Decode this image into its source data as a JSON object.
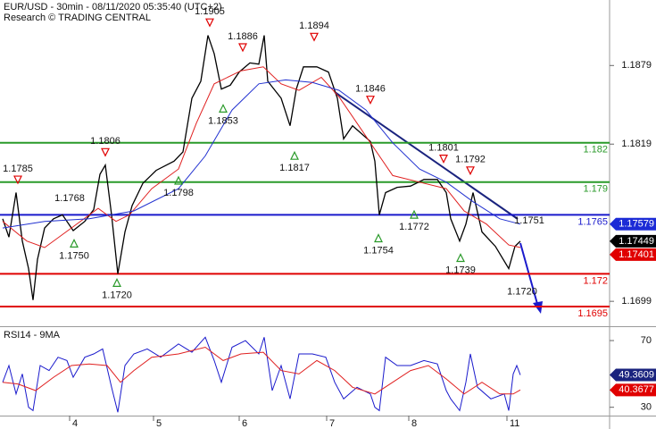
{
  "chart_data": [
    {
      "type": "line",
      "title": "EUR/USD - 30min - 08/11/2020 05:35:40 (UTC+2)",
      "subtitle": "Research © TRADING CENTRAL",
      "xlim": [
        0,
        68.3
      ],
      "ylim": [
        1.168,
        1.1929
      ],
      "yticks": [
        1.1879,
        1.1819,
        1.1699
      ],
      "series": [
        {
          "color": "#000000",
          "x": [
            0.3,
            1,
            1.8,
            2.5,
            3.2,
            3.7,
            4.2,
            5,
            6,
            7,
            8.2,
            9.5,
            10.5,
            11.2,
            11.8,
            12.5,
            13.2,
            14,
            14.8,
            16,
            17.5,
            19.5,
            20.5,
            21.5,
            22.5,
            23.3,
            24,
            24.8,
            25.8,
            26.8,
            28,
            29,
            29.6,
            30,
            31.5,
            32.5,
            33.2,
            34,
            35.5,
            36.8,
            37.8,
            38.5,
            39.5,
            40.5,
            41.5,
            42,
            42.5,
            43.2,
            44.5,
            46,
            47.5,
            49,
            50,
            50.5,
            51.5,
            52.2,
            53,
            54,
            55.5,
            57,
            57.7,
            58.3
          ],
          "values": [
            1.1762,
            1.1748,
            1.1782,
            1.1745,
            1.1724,
            1.17,
            1.1731,
            1.1755,
            1.1762,
            1.1765,
            1.1753,
            1.176,
            1.1769,
            1.1796,
            1.1803,
            1.1765,
            1.172,
            1.1752,
            1.1772,
            1.1789,
            1.1799,
            1.1806,
            1.1813,
            1.1854,
            1.1867,
            1.1902,
            1.1888,
            1.1861,
            1.1864,
            1.1874,
            1.1881,
            1.188,
            1.1902,
            1.1867,
            1.1854,
            1.1833,
            1.1861,
            1.1878,
            1.1878,
            1.1874,
            1.1854,
            1.1823,
            1.1833,
            1.1827,
            1.1821,
            1.1806,
            1.1765,
            1.1782,
            1.1786,
            1.1787,
            1.1792,
            1.1792,
            1.1782,
            1.1762,
            1.1745,
            1.1758,
            1.1782,
            1.1752,
            1.1741,
            1.1724,
            1.1741,
            1.17449
          ]
        },
        {
          "color": "#e02020",
          "x": [
            0.3,
            3,
            5,
            8,
            11,
            13,
            14.5,
            17,
            20,
            22,
            24,
            27,
            29.5,
            31.5,
            33.5,
            36,
            38,
            40,
            42,
            44,
            47,
            50,
            52,
            54.5,
            57,
            58.3
          ],
          "values": [
            1.176,
            1.1745,
            1.174,
            1.1755,
            1.177,
            1.176,
            1.1765,
            1.1785,
            1.18,
            1.1835,
            1.1865,
            1.1875,
            1.1878,
            1.1865,
            1.186,
            1.187,
            1.1855,
            1.1835,
            1.1815,
            1.1795,
            1.179,
            1.1785,
            1.1768,
            1.1758,
            1.1742,
            1.17401
          ]
        },
        {
          "color": "#2030d0",
          "x": [
            0.3,
            5,
            10,
            15,
            20,
            23,
            26,
            29,
            32,
            35,
            38,
            41,
            44,
            47,
            50,
            53,
            56,
            58.3
          ],
          "values": [
            1.1755,
            1.176,
            1.1762,
            1.1768,
            1.1785,
            1.181,
            1.1845,
            1.1865,
            1.1868,
            1.1866,
            1.186,
            1.1845,
            1.182,
            1.18,
            1.179,
            1.1775,
            1.1762,
            1.17579
          ]
        }
      ],
      "levels": [
        {
          "value": 1.182,
          "color": "#2a9a2a"
        },
        {
          "value": 1.179,
          "color": "#2a9a2a"
        },
        {
          "value": 1.1765,
          "color": "#1a1acc"
        },
        {
          "value": 1.172,
          "color": "#e00000"
        },
        {
          "value": 1.1695,
          "color": "#e00000"
        }
      ],
      "badges": [
        {
          "value": 1.17579,
          "color": "#1c2bd6"
        },
        {
          "value": 1.17449,
          "color": "#000000"
        },
        {
          "value": 1.17401,
          "color": "#e00000"
        }
      ],
      "annotations": [
        {
          "label": "1.1785",
          "value": 1.1785,
          "x": 2.0,
          "marker": "down"
        },
        {
          "label": "1.1768",
          "value": 1.1768,
          "x": 7.8,
          "position": "above"
        },
        {
          "label": "1.1750",
          "value": 1.175,
          "x": 8.3,
          "marker": "up"
        },
        {
          "label": "1.1806",
          "value": 1.1806,
          "x": 11.8,
          "marker": "down"
        },
        {
          "label": "1.1720",
          "value": 1.172,
          "x": 13.1,
          "marker": "up"
        },
        {
          "label": "1.1798",
          "value": 1.1798,
          "x": 20.0,
          "marker": "up"
        },
        {
          "label": "1.1905",
          "value": 1.1905,
          "x": 23.5,
          "marker": "down"
        },
        {
          "label": "1.1886",
          "value": 1.1886,
          "x": 27.2,
          "marker": "down"
        },
        {
          "label": "1.1853",
          "value": 1.1853,
          "x": 25.0,
          "marker": "up"
        },
        {
          "label": "1.1894",
          "value": 1.1894,
          "x": 35.2,
          "marker": "down"
        },
        {
          "label": "1.1817",
          "value": 1.1817,
          "x": 33.0,
          "marker": "up"
        },
        {
          "label": "1.1846",
          "value": 1.1846,
          "x": 41.5,
          "marker": "down"
        },
        {
          "label": "1.1801",
          "value": 1.1801,
          "x": 49.7,
          "marker": "down"
        },
        {
          "label": "1.1792",
          "value": 1.1792,
          "x": 52.7,
          "marker": "down"
        },
        {
          "label": "1.1772",
          "value": 1.1772,
          "x": 46.4,
          "marker": "up"
        },
        {
          "label": "1.1754",
          "value": 1.1754,
          "x": 42.4,
          "marker": "up"
        },
        {
          "label": "1.1739",
          "value": 1.1739,
          "x": 51.6,
          "marker": "up"
        },
        {
          "label": "1.1720",
          "value": 1.172,
          "x": 58.5,
          "position": "below"
        },
        {
          "label": "1.1751",
          "value": 1.1751,
          "x": 59.3,
          "position": "above"
        }
      ]
    },
    {
      "type": "line",
      "title": "RSI14 - 9MA",
      "xlim": [
        0,
        68.3
      ],
      "ylim": [
        25,
        77
      ],
      "yticks": [
        70,
        30
      ],
      "xticks": [
        {
          "value": 7.8,
          "label": "4"
        },
        {
          "value": 17.2,
          "label": "5"
        },
        {
          "value": 26.8,
          "label": "6"
        },
        {
          "value": 36.6,
          "label": "7"
        },
        {
          "value": 45.8,
          "label": "8"
        },
        {
          "value": 56.8,
          "label": "11"
        }
      ],
      "series": [
        {
          "color": "#1a1acc",
          "x": [
            0.3,
            1,
            1.8,
            2.5,
            3.2,
            3.7,
            4.5,
            5.5,
            6.5,
            7.5,
            8.2,
            9.5,
            10.5,
            11.5,
            12.5,
            13.2,
            14,
            15,
            16.5,
            18,
            20,
            21.5,
            23,
            24,
            24.8,
            26,
            27.5,
            29,
            29.6,
            30.5,
            31.5,
            32.5,
            33.5,
            35,
            36.5,
            37.5,
            38.5,
            40,
            41.5,
            42,
            42.5,
            43.2,
            44.5,
            46,
            47.5,
            49,
            50,
            50.5,
            51.5,
            52.2,
            52.7,
            53.5,
            55,
            56.5,
            57,
            57.5,
            57.9,
            58.3
          ],
          "values": [
            45,
            55,
            38,
            50,
            30,
            28,
            55,
            52,
            60,
            58,
            48,
            60,
            62,
            65,
            42,
            27,
            55,
            62,
            65,
            60,
            68,
            63,
            72,
            58,
            45,
            66,
            70,
            62,
            72,
            40,
            55,
            35,
            62,
            62,
            60,
            45,
            35,
            42,
            38,
            30,
            28,
            60,
            55,
            55,
            58,
            56,
            40,
            35,
            28,
            45,
            62,
            42,
            35,
            38,
            28,
            50,
            55,
            49.3609
          ]
        },
        {
          "color": "#e02020",
          "x": [
            0.3,
            2,
            4,
            6,
            8,
            10,
            12,
            13.5,
            15,
            17,
            20,
            23,
            25,
            27,
            29.5,
            31.5,
            33.5,
            35.5,
            37.5,
            39.5,
            42,
            44,
            46,
            48,
            50,
            52,
            54,
            56,
            57.5,
            58.3
          ],
          "values": [
            45,
            44,
            40,
            48,
            55,
            56,
            55,
            45,
            52,
            60,
            62,
            66,
            58,
            62,
            63,
            52,
            50,
            58,
            52,
            42,
            38,
            45,
            52,
            55,
            47,
            38,
            45,
            38,
            38,
            40.3677
          ]
        }
      ],
      "badges": [
        {
          "value": 49.3609,
          "color": "#1a237e"
        },
        {
          "value": 40.3677,
          "color": "#e00000"
        }
      ]
    }
  ]
}
